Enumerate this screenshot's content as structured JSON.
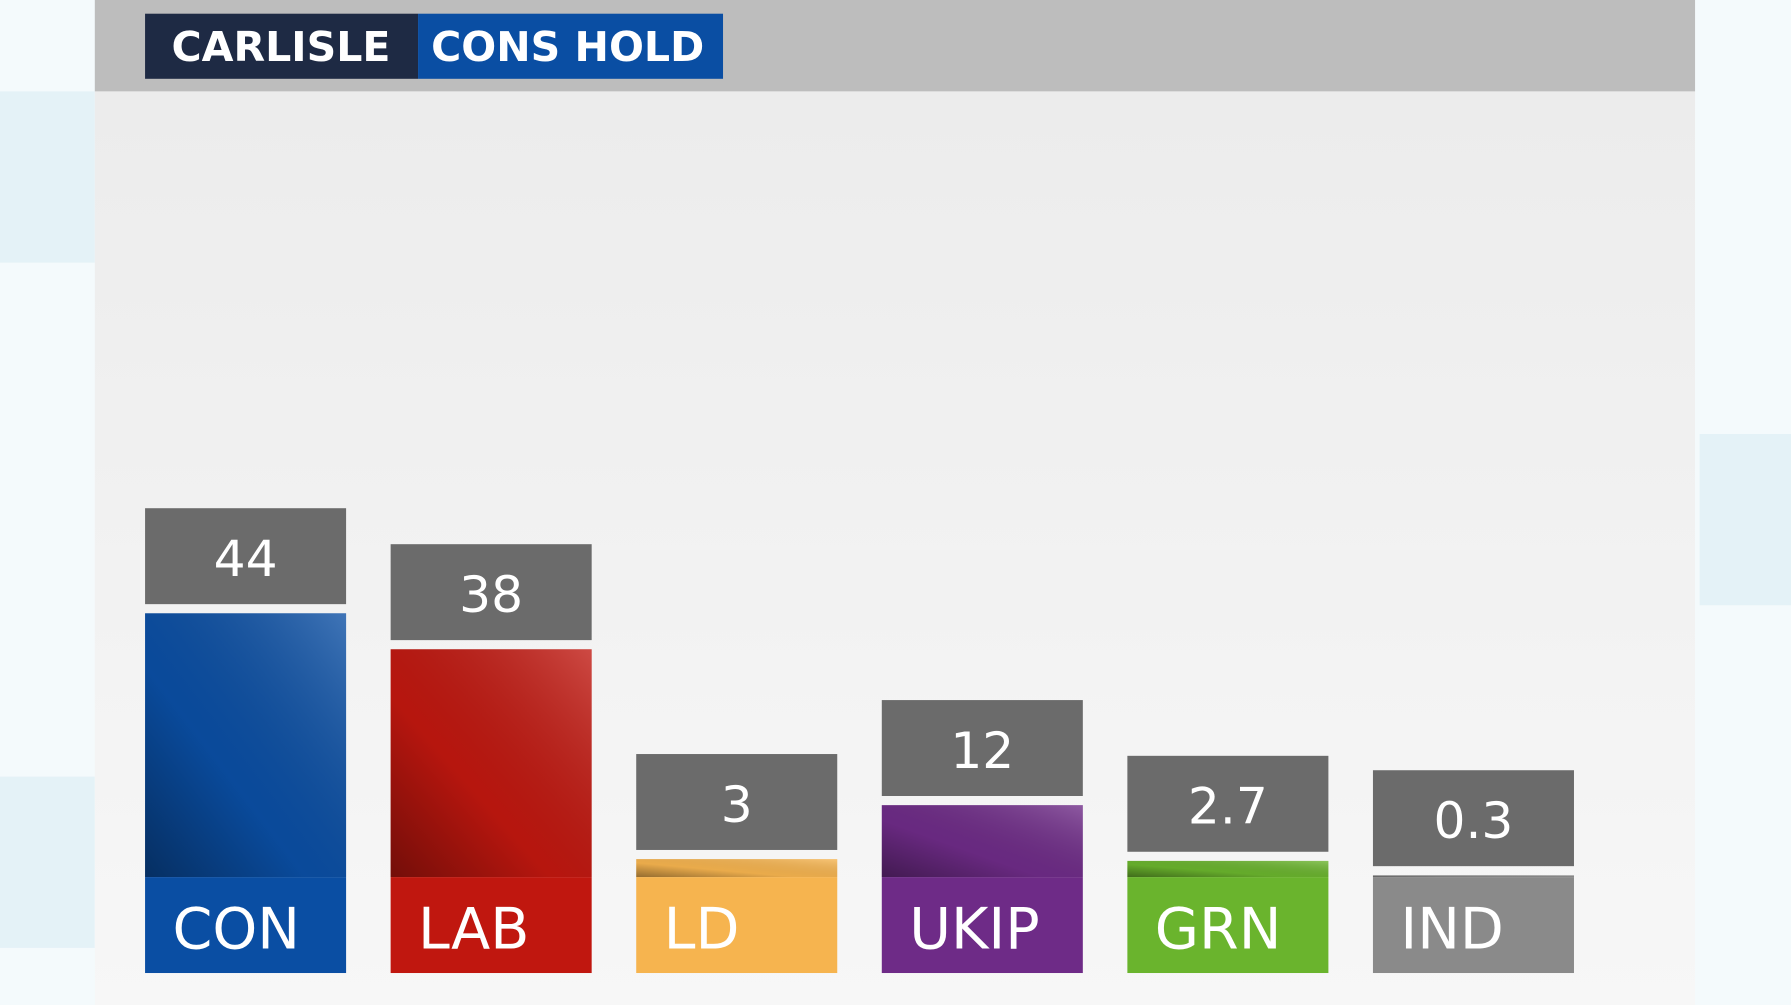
{
  "chart_data": {
    "type": "bar",
    "title": "CARLISLE",
    "subtitle": "CONS HOLD",
    "categories": [
      "CON",
      "LAB",
      "LD",
      "UKIP",
      "GRN",
      "IND"
    ],
    "values": [
      44,
      38,
      3,
      12,
      2.7,
      0.3
    ],
    "colors": [
      "#0a4ea3",
      "#c0170f",
      "#f6b44f",
      "#6e2b87",
      "#6ab42d",
      "#8a8a8a"
    ]
  }
}
